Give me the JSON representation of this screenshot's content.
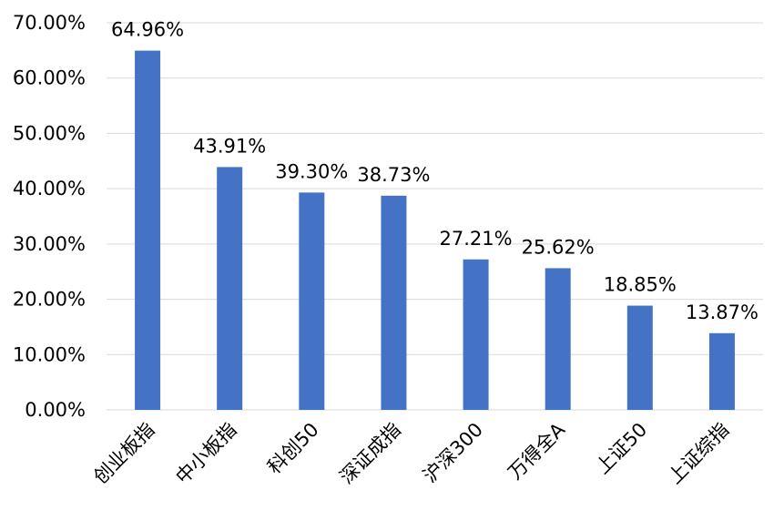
{
  "chart_data": {
    "type": "bar",
    "title": "",
    "xlabel": "",
    "ylabel": "",
    "ylim": [
      0,
      70
    ],
    "yticks": [
      "0.00%",
      "10.00%",
      "20.00%",
      "30.00%",
      "40.00%",
      "50.00%",
      "60.00%",
      "70.00%"
    ],
    "categories": [
      "创业板指",
      "中小板指",
      "科创50",
      "深证成指",
      "沪深300",
      "万得全A",
      "上证50",
      "上证综指"
    ],
    "values": [
      64.96,
      43.91,
      39.3,
      38.73,
      27.21,
      25.62,
      18.85,
      13.87
    ],
    "data_labels": [
      "64.96%",
      "43.91%",
      "39.30%",
      "38.73%",
      "27.21%",
      "25.62%",
      "18.85%",
      "13.87%"
    ],
    "grid": true,
    "bar_color": "#4472c4"
  }
}
